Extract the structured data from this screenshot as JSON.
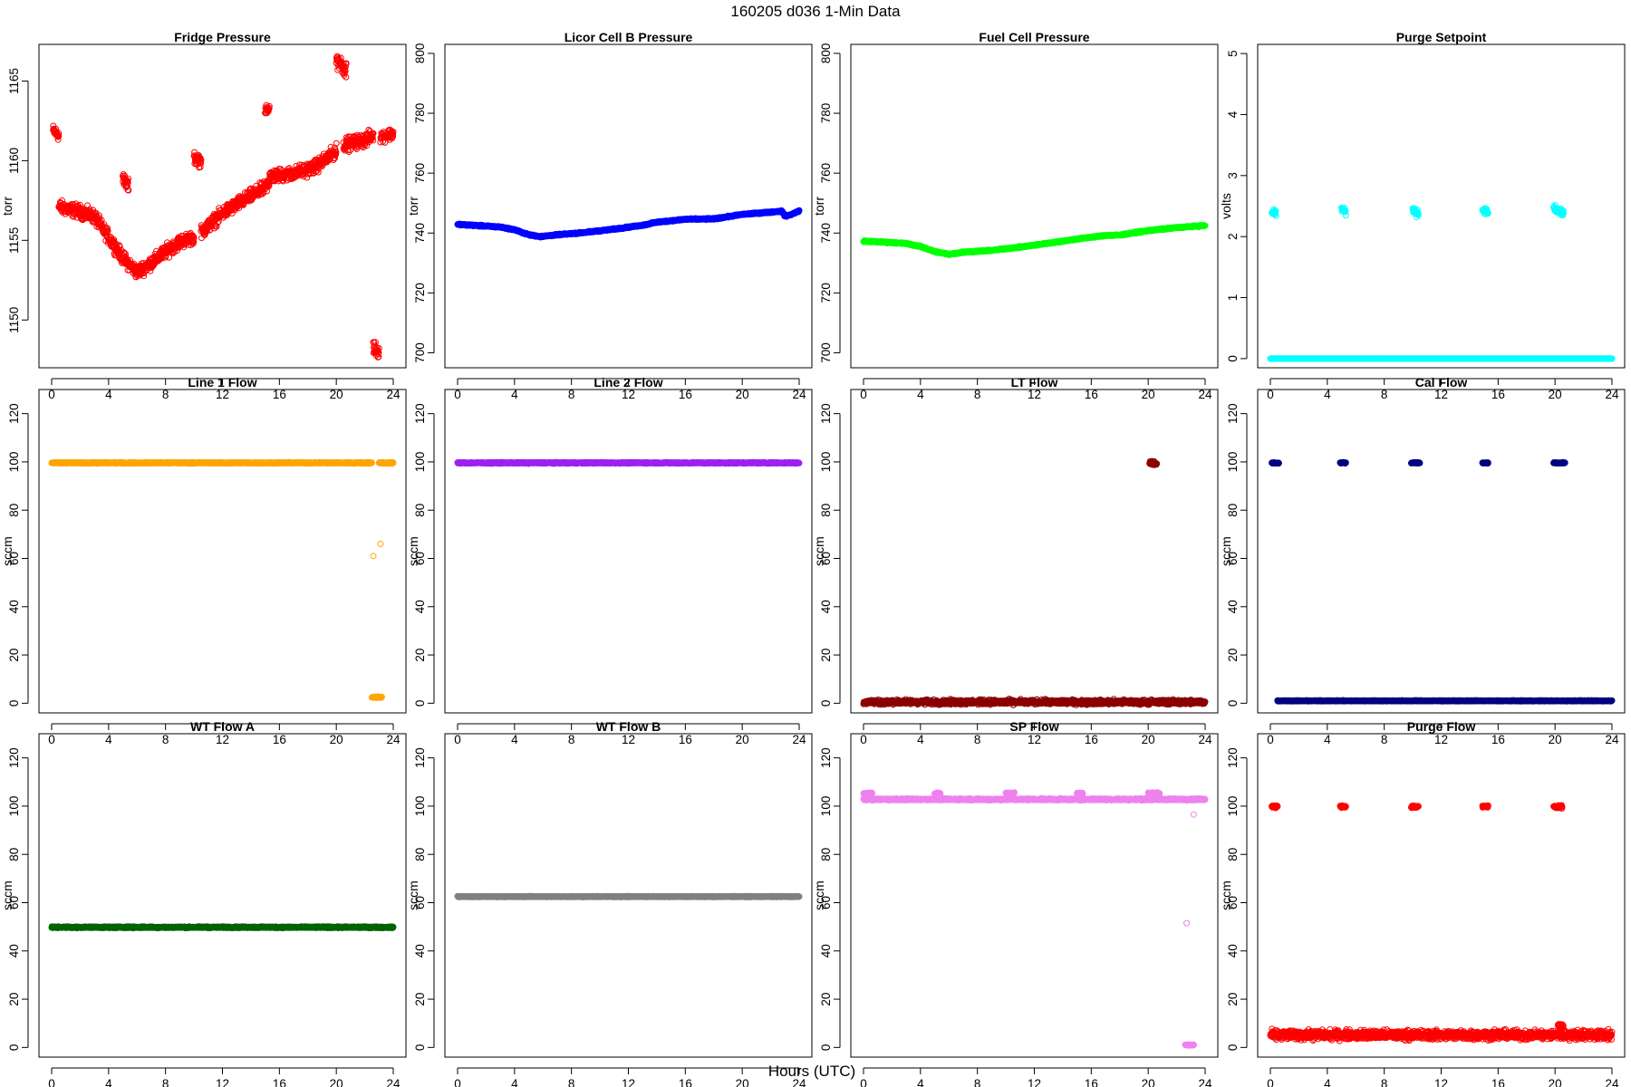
{
  "figure": {
    "title": "160205    d036    1-Min Data",
    "xlabel": "Hours (UTC)"
  },
  "chart_data": [
    {
      "type": "scatter",
      "title": "Fridge Pressure",
      "ylabel": "torr",
      "color": "#ff0000",
      "marker": "open-circle",
      "xlim": [
        0,
        24
      ],
      "xticks": [
        0,
        4,
        8,
        12,
        16,
        20,
        24
      ],
      "ylim": [
        1147,
        1167.3
      ],
      "yticks": [
        1150,
        1155,
        1160,
        1165
      ],
      "series": [
        {
          "segments": [
            {
              "x": [
                0.1,
                0.5
              ],
              "y": [
                1161.9,
                1161.6
              ],
              "noise": 0.3
            },
            {
              "x": [
                0.5,
                2.0,
                3.0,
                4.0,
                5.0,
                6.0,
                7.0,
                8.0,
                9.0,
                10.0
              ],
              "y": [
                1157.1,
                1156.8,
                1156.5,
                1155.2,
                1153.9,
                1153.0,
                1153.6,
                1154.3,
                1154.9,
                1155.2
              ],
              "noise": 0.35
            },
            {
              "x": [
                5.0,
                5.4
              ],
              "y": [
                1158.8,
                1158.4
              ],
              "noise": 0.35
            },
            {
              "x": [
                10.0,
                10.5
              ],
              "y": [
                1160.2,
                1160.0
              ],
              "noise": 0.35
            },
            {
              "x": [
                10.5,
                12.0,
                14.0,
                15.0,
                15.3
              ],
              "y": [
                1155.5,
                1156.7,
                1157.8,
                1158.3,
                1158.6
              ],
              "noise": 0.35
            },
            {
              "x": [
                15.0,
                15.3
              ],
              "y": [
                1163.3,
                1163.3
              ],
              "noise": 0.35
            },
            {
              "x": [
                15.3,
                17.0,
                18.5,
                20.0
              ],
              "y": [
                1159.0,
                1159.2,
                1159.6,
                1160.6
              ],
              "noise": 0.35
            },
            {
              "x": [
                20.0,
                20.7
              ],
              "y": [
                1166.4,
                1165.7
              ],
              "noise": 0.45
            },
            {
              "x": [
                20.5,
                22.0,
                22.6
              ],
              "y": [
                1161.0,
                1161.3,
                1161.6
              ],
              "noise": 0.35
            },
            {
              "x": [
                22.6,
                23.0
              ],
              "y": [
                1148.3,
                1148.0
              ],
              "noise": 0.35
            },
            {
              "x": [
                23.1,
                24.0
              ],
              "y": [
                1161.5,
                1161.7
              ],
              "noise": 0.3
            }
          ]
        }
      ]
    },
    {
      "type": "scatter",
      "title": "Licor Cell B Pressure",
      "ylabel": "torr",
      "color": "#0000ff",
      "marker": "open-circle",
      "xlim": [
        0,
        24
      ],
      "xticks": [
        0,
        4,
        8,
        12,
        16,
        20,
        24
      ],
      "ylim": [
        695,
        803
      ],
      "yticks": [
        700,
        720,
        740,
        760,
        780,
        800
      ],
      "series": [
        {
          "segments": [
            {
              "x": [
                0,
                2,
                3,
                4,
                5,
                5.8,
                7,
                9,
                11,
                13,
                14,
                16,
                18,
                20,
                22.8,
                23.0,
                23.4,
                24
              ],
              "y": [
                742.9,
                742.3,
                742.0,
                741.1,
                739.4,
                738.8,
                739.4,
                740.2,
                741.3,
                742.6,
                743.6,
                744.6,
                744.7,
                746.2,
                747.3,
                745.6,
                746.1,
                747.4
              ],
              "noise": 0.2
            }
          ]
        }
      ]
    },
    {
      "type": "scatter",
      "title": "Fuel Cell Pressure",
      "ylabel": "torr",
      "color": "#00ff00",
      "marker": "open-circle",
      "xlim": [
        0,
        24
      ],
      "xticks": [
        0,
        4,
        8,
        12,
        16,
        20,
        24
      ],
      "ylim": [
        695,
        803
      ],
      "yticks": [
        700,
        720,
        740,
        760,
        780,
        800
      ],
      "series": [
        {
          "segments": [
            {
              "x": [
                0,
                2,
                3,
                4,
                5,
                6,
                7,
                9,
                11,
                13,
                15,
                17,
                18,
                20,
                22,
                24
              ],
              "y": [
                737.3,
                736.8,
                736.5,
                735.5,
                733.8,
                732.9,
                733.6,
                734.2,
                735.3,
                736.6,
                738.0,
                739.2,
                739.3,
                740.8,
                741.8,
                742.5
              ],
              "noise": 0.2
            }
          ]
        }
      ]
    },
    {
      "type": "scatter",
      "title": "Purge Setpoint",
      "ylabel": "volts",
      "color": "#00ffff",
      "marker": "open-circle",
      "xlim": [
        0,
        24
      ],
      "xticks": [
        0,
        4,
        8,
        12,
        16,
        20,
        24
      ],
      "ylim": [
        -0.15,
        5.15
      ],
      "yticks": [
        0,
        1,
        2,
        3,
        4,
        5
      ],
      "series": [
        {
          "segments": [
            {
              "x": [
                0,
                24
              ],
              "y": [
                0,
                0
              ],
              "noise": 0
            },
            {
              "x": [
                0.1,
                0.4
              ],
              "y": [
                2.42,
                2.38
              ],
              "noise": 0.05
            },
            {
              "x": [
                5.0,
                5.3
              ],
              "y": [
                2.46,
                2.4
              ],
              "noise": 0.04
            },
            {
              "x": [
                10.0,
                10.4
              ],
              "y": [
                2.44,
                2.38
              ],
              "noise": 0.05
            },
            {
              "x": [
                14.9,
                15.3
              ],
              "y": [
                2.44,
                2.4
              ],
              "noise": 0.04
            },
            {
              "x": [
                19.9,
                20.6
              ],
              "y": [
                2.46,
                2.38
              ],
              "noise": 0.05
            }
          ]
        }
      ]
    },
    {
      "type": "scatter",
      "title": "Line 1 Flow",
      "ylabel": "sccm",
      "color": "#ffa500",
      "marker": "open-circle",
      "xlim": [
        0,
        24
      ],
      "xticks": [
        0,
        4,
        8,
        12,
        16,
        20,
        24
      ],
      "ylim": [
        -4,
        130
      ],
      "yticks": [
        0,
        20,
        40,
        60,
        80,
        100,
        120
      ],
      "series": [
        {
          "segments": [
            {
              "x": [
                0,
                22.5
              ],
              "y": [
                99.6,
                99.6
              ],
              "noise": 0.2
            },
            {
              "x": [
                23.0,
                24.0
              ],
              "y": [
                99.6,
                99.6
              ],
              "noise": 0.2
            },
            {
              "x": [
                22.5,
                23.2
              ],
              "y": [
                2.5,
                2.5
              ],
              "noise": 0.2
            }
          ]
        },
        {
          "x": [
            22.6,
            23.1
          ],
          "y": [
            61,
            66
          ]
        }
      ]
    },
    {
      "type": "scatter",
      "title": "Line 2 Flow",
      "ylabel": "sccm",
      "color": "#a020f0",
      "marker": "open-circle",
      "xlim": [
        0,
        24
      ],
      "xticks": [
        0,
        4,
        8,
        12,
        16,
        20,
        24
      ],
      "ylim": [
        -4,
        130
      ],
      "yticks": [
        0,
        20,
        40,
        60,
        80,
        100,
        120
      ],
      "series": [
        {
          "segments": [
            {
              "x": [
                0,
                24
              ],
              "y": [
                99.6,
                99.6
              ],
              "noise": 0.2
            }
          ]
        }
      ]
    },
    {
      "type": "scatter",
      "title": "LT Flow",
      "ylabel": "sccm",
      "color": "#8b0000",
      "marker": "open-circle",
      "xlim": [
        0,
        24
      ],
      "xticks": [
        0,
        4,
        8,
        12,
        16,
        20,
        24
      ],
      "ylim": [
        -4,
        130
      ],
      "yticks": [
        0,
        20,
        40,
        60,
        80,
        100,
        120
      ],
      "series": [
        {
          "segments": [
            {
              "x": [
                0,
                24
              ],
              "y": [
                0.5,
                0.5
              ],
              "noise": 0.8
            },
            {
              "x": [
                20.1,
                20.6
              ],
              "y": [
                99.6,
                99.4
              ],
              "noise": 0.8
            }
          ]
        }
      ]
    },
    {
      "type": "scatter",
      "title": "Cal Flow",
      "ylabel": "sccm",
      "color": "#000080",
      "marker": "open-circle",
      "xlim": [
        0,
        24
      ],
      "xticks": [
        0,
        4,
        8,
        12,
        16,
        20,
        24
      ],
      "ylim": [
        -4,
        130
      ],
      "yticks": [
        0,
        20,
        40,
        60,
        80,
        100,
        120
      ],
      "series": [
        {
          "segments": [
            {
              "x": [
                0.5,
                24
              ],
              "y": [
                1.0,
                1.0
              ],
              "noise": 0.15
            },
            {
              "x": [
                0.1,
                0.6
              ],
              "y": [
                99.6,
                99.6
              ],
              "noise": 0.2
            },
            {
              "x": [
                4.9,
                5.3
              ],
              "y": [
                99.6,
                99.6
              ],
              "noise": 0.2
            },
            {
              "x": [
                9.9,
                10.5
              ],
              "y": [
                99.6,
                99.6
              ],
              "noise": 0.2
            },
            {
              "x": [
                14.9,
                15.3
              ],
              "y": [
                99.6,
                99.6
              ],
              "noise": 0.2
            },
            {
              "x": [
                19.9,
                20.7
              ],
              "y": [
                99.6,
                99.6
              ],
              "noise": 0.2
            }
          ]
        }
      ]
    },
    {
      "type": "scatter",
      "title": "WT Flow A",
      "ylabel": "sccm",
      "color": "#006400",
      "marker": "open-circle",
      "xlim": [
        0,
        24
      ],
      "xticks": [
        0,
        4,
        8,
        12,
        16,
        20,
        24
      ],
      "ylim": [
        -4,
        130
      ],
      "yticks": [
        0,
        20,
        40,
        60,
        80,
        100,
        120
      ],
      "series": [
        {
          "segments": [
            {
              "x": [
                0,
                24
              ],
              "y": [
                49.8,
                49.8
              ],
              "noise": 0.25
            }
          ]
        }
      ]
    },
    {
      "type": "scatter",
      "title": "WT Flow B",
      "ylabel": "sccm",
      "color": "#808080",
      "marker": "open-circle",
      "xlim": [
        0,
        24
      ],
      "xticks": [
        0,
        4,
        8,
        12,
        16,
        20,
        24
      ],
      "ylim": [
        -4,
        130
      ],
      "yticks": [
        0,
        20,
        40,
        60,
        80,
        100,
        120
      ],
      "series": [
        {
          "segments": [
            {
              "x": [
                0,
                24
              ],
              "y": [
                62.5,
                62.5
              ],
              "noise": 0.15
            }
          ]
        }
      ]
    },
    {
      "type": "scatter",
      "title": "SP Flow",
      "ylabel": "sccm",
      "color": "#ee82ee",
      "marker": "open-circle",
      "xlim": [
        0,
        24
      ],
      "xticks": [
        0,
        4,
        8,
        12,
        16,
        20,
        24
      ],
      "ylim": [
        -4,
        130
      ],
      "yticks": [
        0,
        20,
        40,
        60,
        80,
        100,
        120
      ],
      "series": [
        {
          "segments": [
            {
              "x": [
                0,
                24
              ],
              "y": [
                102.8,
                102.8
              ],
              "noise": 0.3
            },
            {
              "x": [
                0.0,
                0.6
              ],
              "y": [
                105.3,
                105.3
              ],
              "noise": 0.3
            },
            {
              "x": [
                5.0,
                5.4
              ],
              "y": [
                105.3,
                105.3
              ],
              "noise": 0.3
            },
            {
              "x": [
                10.0,
                10.6
              ],
              "y": [
                105.3,
                105.3
              ],
              "noise": 0.3
            },
            {
              "x": [
                15.0,
                15.4
              ],
              "y": [
                105.3,
                105.3
              ],
              "noise": 0.3
            },
            {
              "x": [
                20.0,
                20.8
              ],
              "y": [
                105.3,
                105.3
              ],
              "noise": 0.3
            },
            {
              "x": [
                22.6,
                23.2
              ],
              "y": [
                1.0,
                1.0
              ],
              "noise": 0.2
            }
          ]
        },
        {
          "x": [
            22.7,
            23.2
          ],
          "y": [
            51.5,
            96.5
          ]
        }
      ]
    },
    {
      "type": "scatter",
      "title": "Purge Flow",
      "ylabel": "sccm",
      "color": "#ff0000",
      "marker": "open-circle",
      "xlim": [
        0,
        24
      ],
      "xticks": [
        0,
        4,
        8,
        12,
        16,
        20,
        24
      ],
      "ylim": [
        -4,
        130
      ],
      "yticks": [
        0,
        20,
        40,
        60,
        80,
        100,
        120
      ],
      "series": [
        {
          "segments": [
            {
              "x": [
                0,
                24
              ],
              "y": [
                5.2,
                5.2
              ],
              "noise": 1.6
            },
            {
              "x": [
                0.1,
                0.5
              ],
              "y": [
                99.8,
                99.8
              ],
              "noise": 0.4
            },
            {
              "x": [
                4.9,
                5.3
              ],
              "y": [
                99.8,
                99.8
              ],
              "noise": 0.4
            },
            {
              "x": [
                9.9,
                10.4
              ],
              "y": [
                99.8,
                99.8
              ],
              "noise": 0.5
            },
            {
              "x": [
                14.9,
                15.3
              ],
              "y": [
                99.8,
                99.8
              ],
              "noise": 0.4
            },
            {
              "x": [
                19.9,
                20.5
              ],
              "y": [
                99.8,
                99.8
              ],
              "noise": 0.5
            },
            {
              "x": [
                20.2,
                20.6
              ],
              "y": [
                9.0,
                8.0
              ],
              "noise": 1.2
            }
          ]
        }
      ]
    }
  ]
}
